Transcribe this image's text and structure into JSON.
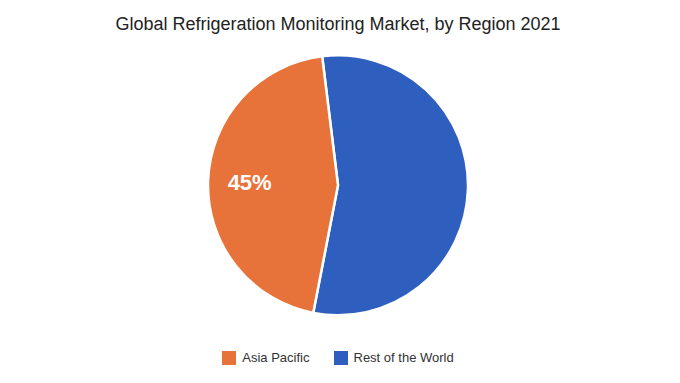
{
  "chart_data": {
    "type": "pie",
    "title": "Global Refrigeration Monitoring Market, by Region 2021",
    "categories": [
      "Rest of the World",
      "Asia Pacific"
    ],
    "values": [
      55,
      45
    ],
    "value_labels": [
      null,
      "45%"
    ],
    "colors": [
      "#2E5FBF",
      "#E8733A"
    ],
    "data_labels": true,
    "legend": "bottom"
  }
}
